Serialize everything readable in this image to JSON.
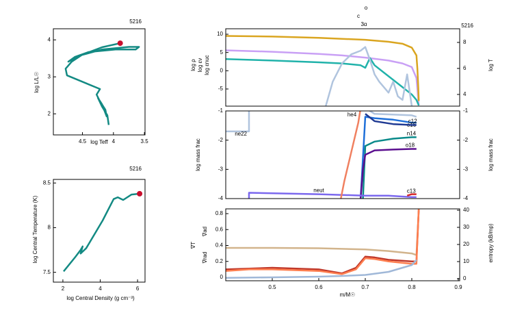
{
  "chart_data": [
    {
      "type": "line",
      "note": "5216",
      "xlabel": "log Teff",
      "ylabel": "log L/L☉",
      "xlim": [
        4.97,
        3.49
      ],
      "xticks": [
        4.5,
        4,
        3.5
      ],
      "ylim": [
        1.43,
        4.3
      ],
      "yticks": [
        2,
        3,
        4
      ],
      "series": [
        {
          "color": "#138a83",
          "x": [
            4.076,
            4.098,
            4.185,
            4.25,
            4.185,
            4.109,
            4.13,
            4.228,
            4.272,
            4.217,
            4.75,
            4.772,
            4.674,
            4.511,
            4.185,
            3.75,
            3.587,
            3.64,
            3.967,
            4.402,
            4.62,
            4.728,
            4.5,
            4.185,
            3.891
          ],
          "values": [
            1.7,
            1.96,
            2.2,
            2.43,
            2.26,
            1.93,
            2.11,
            2.37,
            2.52,
            2.67,
            3.04,
            3.22,
            3.41,
            3.59,
            3.74,
            3.81,
            3.81,
            3.74,
            3.74,
            3.67,
            3.54,
            3.41,
            3.6,
            3.8,
            3.91
          ]
        }
      ],
      "marker": {
        "x": 3.891,
        "y": 3.91,
        "color": "#c8102e"
      }
    },
    {
      "type": "line",
      "note": "5216",
      "xlabel": "log Central Density (g cm⁻³)",
      "ylabel": "log Central Temperature (K)",
      "xlim": [
        1.49,
        6.4
      ],
      "xticks": [
        2,
        4,
        6
      ],
      "ylim": [
        7.39,
        8.54
      ],
      "yticks": [
        7.5,
        8,
        8.5
      ],
      "series": [
        {
          "color": "#138a83",
          "x": [
            2.04,
            2.66,
            2.95,
            3.06,
            2.95,
            3.25,
            4.13,
            4.72,
            4.94,
            5.23,
            5.67,
            6.11
          ],
          "values": [
            7.51,
            7.67,
            7.75,
            7.79,
            7.71,
            7.77,
            8.08,
            8.32,
            8.34,
            8.31,
            8.37,
            8.38
          ]
        }
      ],
      "marker": {
        "x": 6.11,
        "y": 8.38,
        "color": "#c8102e"
      }
    },
    {
      "type": "line",
      "note": "5216",
      "annotations": [
        "o",
        "c",
        "3α"
      ],
      "xlim": [
        0.4,
        0.903
      ],
      "ylim": [
        -9.7,
        11.5
      ],
      "yticks": [
        10,
        5,
        0,
        -5
      ],
      "y2lim": [
        3.1,
        9.05
      ],
      "y2ticks": [
        8,
        6,
        4
      ],
      "series": [
        {
          "name": "log ρ",
          "color": "#c9a0f5",
          "x": [
            0.4,
            0.5,
            0.6,
            0.65,
            0.7,
            0.75,
            0.78,
            0.8,
            0.81,
            0.812,
            0.815
          ],
          "values": [
            5.6,
            5.2,
            4.6,
            4.2,
            3.6,
            2.8,
            2.0,
            1.0,
            -2,
            -5,
            -9.5
          ]
        },
        {
          "name": "log εν",
          "color": "#20b2aa",
          "x": [
            0.4,
            0.5,
            0.6,
            0.65,
            0.69,
            0.7,
            0.71,
            0.72,
            0.74,
            0.76,
            0.78,
            0.8,
            0.81,
            0.815
          ],
          "values": [
            3.2,
            2.8,
            2.3,
            2.0,
            1.5,
            0.8,
            3.5,
            1.5,
            -0.5,
            -2.5,
            -4.5,
            -6.5,
            -8,
            -9.5
          ]
        },
        {
          "name": "log εnuc",
          "color": "#b0c4de",
          "x": [
            0.615,
            0.63,
            0.65,
            0.67,
            0.69,
            0.7,
            0.71,
            0.72,
            0.73,
            0.75,
            0.76,
            0.77,
            0.78,
            0.79,
            0.8
          ],
          "values": [
            -9.7,
            -3,
            2,
            4.5,
            5.5,
            6.5,
            3,
            -1,
            -3,
            -6,
            -3,
            -7,
            -8,
            -1,
            -9.7
          ]
        },
        {
          "name": "log T",
          "color": "#daa520",
          "axis": "y2",
          "x": [
            0.4,
            0.5,
            0.6,
            0.7,
            0.75,
            0.78,
            0.8,
            0.81,
            0.812,
            0.814,
            0.815
          ],
          "values": [
            8.5,
            8.45,
            8.35,
            8.2,
            8.05,
            7.9,
            7.6,
            7.0,
            6.0,
            4.5,
            3.5
          ]
        }
      ]
    },
    {
      "type": "line",
      "ylabel": "log mass frac",
      "y2label": "log mass frac",
      "xlim": [
        0.4,
        0.903
      ],
      "ylim": [
        -4,
        -1
      ],
      "yticks": [
        -1,
        -2,
        -3,
        -4
      ],
      "y2lim": [
        -4,
        -1
      ],
      "y2ticks": [
        -1,
        -2,
        -3,
        -4
      ],
      "series": [
        {
          "name": "ne22",
          "color": "#b0c4de",
          "x": [
            0.4,
            0.45,
            0.45,
            0.7,
            0.72,
            0.8,
            0.81
          ],
          "values": [
            -1.7,
            -1.7,
            -0.9,
            -0.9,
            -1.1,
            -1.15,
            -1.2
          ]
        },
        {
          "name": "o16",
          "color": "#1e6fd9",
          "x": [
            0.69,
            0.7,
            0.72,
            0.76,
            0.8,
            0.81
          ],
          "values": [
            -4,
            -1.2,
            -1.25,
            -1.3,
            -1.4,
            -1.4
          ]
        },
        {
          "name": "c12",
          "color": "#1f3a93",
          "x": [
            0.7,
            0.72,
            0.76,
            0.8,
            0.81
          ],
          "values": [
            -1.1,
            -1.35,
            -1.45,
            -1.48,
            -1.48
          ]
        },
        {
          "name": "n14",
          "color": "#0a8a8a",
          "x": [
            0.695,
            0.7,
            0.72,
            0.76,
            0.8,
            0.81
          ],
          "values": [
            -4,
            -2.2,
            -2.05,
            -1.95,
            -1.9,
            -1.9
          ]
        },
        {
          "name": "o18",
          "color": "#5b0f8f",
          "x": [
            0.69,
            0.695,
            0.7,
            0.72,
            0.76,
            0.8,
            0.81
          ],
          "values": [
            -4,
            -3,
            -2.5,
            -2.35,
            -2.32,
            -2.3,
            -2.3
          ]
        },
        {
          "name": "neut",
          "color": "#7b68ee",
          "x": [
            0.4,
            0.45,
            0.45,
            0.6,
            0.7,
            0.75,
            0.8,
            0.81
          ],
          "values": [
            -4.05,
            -4.05,
            -3.8,
            -3.85,
            -3.9,
            -3.9,
            -3.95,
            -3.95
          ]
        },
        {
          "name": "he4",
          "color": "#f08060",
          "x": [
            0.645,
            0.655,
            0.67,
            0.685,
            0.69
          ],
          "values": [
            -4.2,
            -3.4,
            -2.4,
            -1.4,
            -0.9
          ]
        },
        {
          "name": "c13",
          "color": "#d62728",
          "x": [
            0.79,
            0.8,
            0.81
          ],
          "values": [
            -3.9,
            -3.85,
            -3.85
          ]
        }
      ]
    },
    {
      "type": "line",
      "xlabel": "m/M☉",
      "xlim": [
        0.4,
        0.903
      ],
      "xticks": [
        0.5,
        0.6,
        0.7,
        0.8,
        0.9
      ],
      "ylim": [
        -0.043,
        0.86
      ],
      "yticks": [
        0.8,
        0.6,
        0.4,
        0.2,
        0
      ],
      "y2lim": [
        -1.2,
        40.8
      ],
      "y2ticks": [
        40,
        30,
        20,
        10,
        0
      ],
      "series": [
        {
          "name": "∇ad",
          "color": "#d2b48c",
          "x": [
            0.4,
            0.5,
            0.6,
            0.7,
            0.75,
            0.8,
            0.81,
            0.815
          ],
          "values": [
            0.37,
            0.37,
            0.365,
            0.35,
            0.33,
            0.3,
            0.28,
            0.86
          ]
        },
        {
          "name": "∇T",
          "color": "#c0392b",
          "x": [
            0.4,
            0.45,
            0.5,
            0.6,
            0.65,
            0.68,
            0.7,
            0.72,
            0.75,
            0.8,
            0.81,
            0.815
          ],
          "values": [
            0.1,
            0.11,
            0.12,
            0.1,
            0.05,
            0.12,
            0.26,
            0.25,
            0.22,
            0.2,
            0.2,
            0.85
          ]
        },
        {
          "name": "∇rad",
          "color": "#ff7f50",
          "x": [
            0.4,
            0.45,
            0.5,
            0.6,
            0.65,
            0.68,
            0.7,
            0.72,
            0.75,
            0.8,
            0.81,
            0.815
          ],
          "values": [
            0.08,
            0.1,
            0.1,
            0.08,
            0.04,
            0.1,
            0.24,
            0.23,
            0.2,
            0.17,
            0.17,
            0.86
          ]
        },
        {
          "name": "entropy (kB/mp)",
          "color": "#a0b8d8",
          "axis": "y2",
          "x": [
            0.4,
            0.5,
            0.6,
            0.65,
            0.7,
            0.75,
            0.8,
            0.81
          ],
          "values": [
            0.5,
            0.8,
            1.2,
            1.6,
            2.2,
            4,
            8,
            11
          ]
        }
      ]
    }
  ]
}
